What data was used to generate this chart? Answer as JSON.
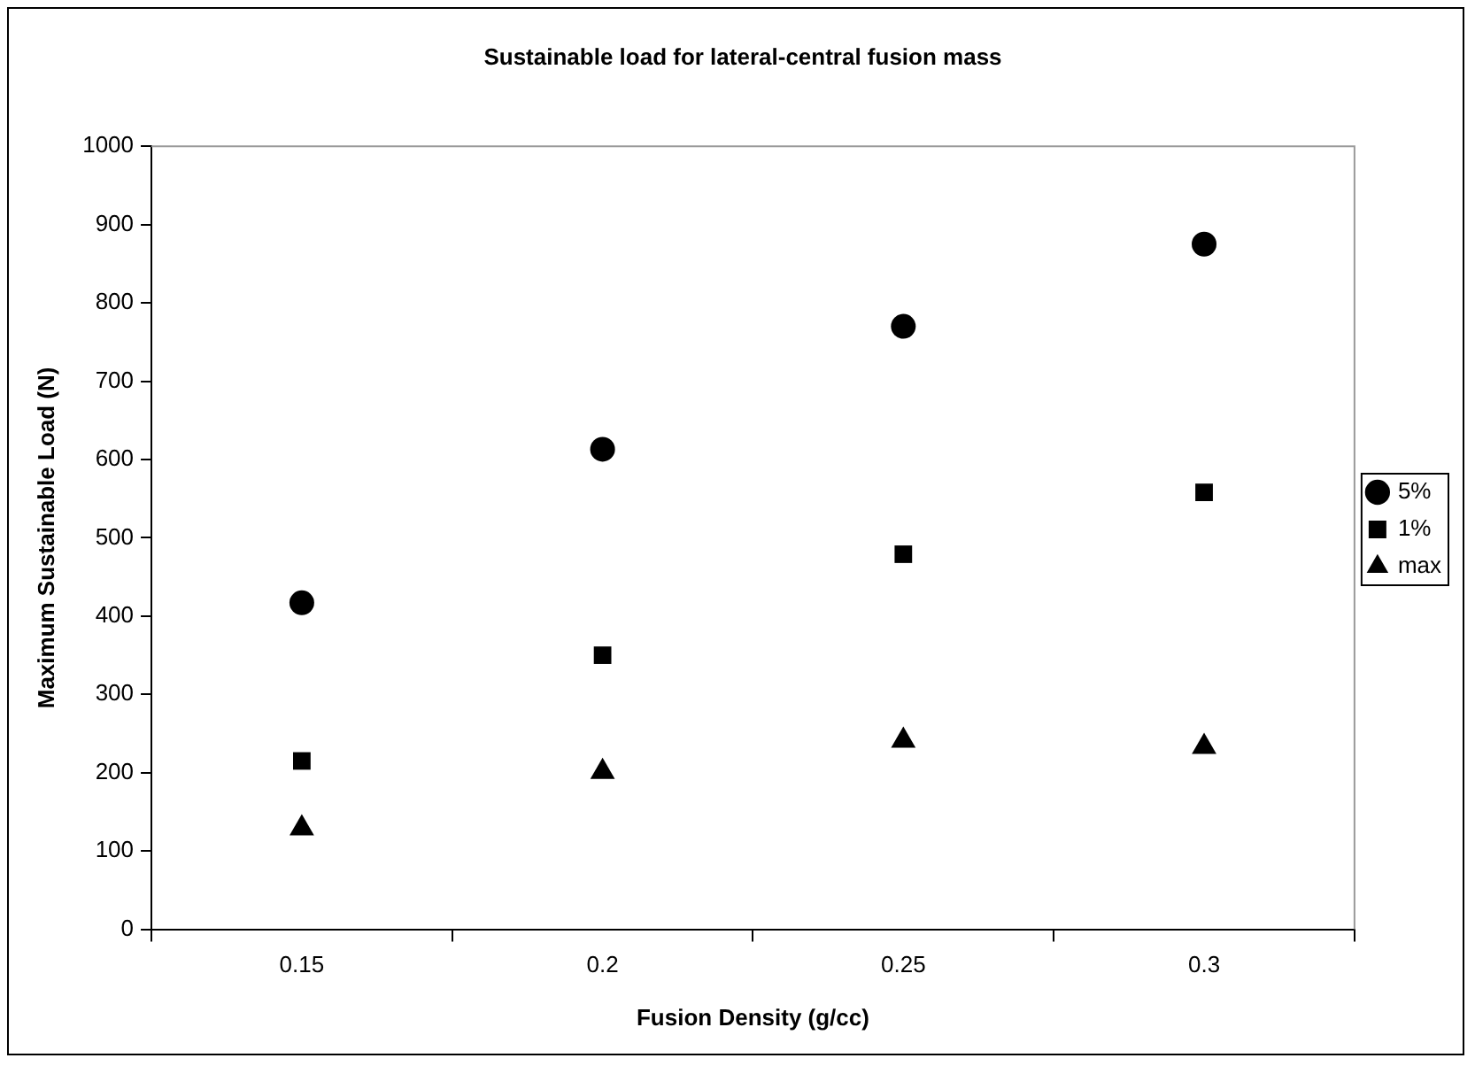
{
  "chart_data": {
    "type": "scatter",
    "title": "Sustainable load for lateral-central fusion mass",
    "xlabel": "Fusion Density (g/cc)",
    "ylabel": "Maximum Sustainable Load (N)",
    "categories": [
      "0.15",
      "0.2",
      "0.25",
      "0.3"
    ],
    "series": [
      {
        "name": "5%",
        "color": "#000000",
        "marker": "circle",
        "values": [
          417,
          613,
          770,
          875
        ]
      },
      {
        "name": "1%",
        "color": "#000000",
        "marker": "square",
        "values": [
          215,
          350,
          479,
          558
        ]
      },
      {
        "name": "max",
        "color": "#000000",
        "marker": "triangle",
        "values": [
          129,
          201,
          241,
          233
        ]
      }
    ],
    "ylim": [
      0,
      1000
    ],
    "yticks": [
      0,
      100,
      200,
      300,
      400,
      500,
      600,
      700,
      800,
      900,
      1000
    ],
    "grid": false,
    "legend": "right"
  }
}
